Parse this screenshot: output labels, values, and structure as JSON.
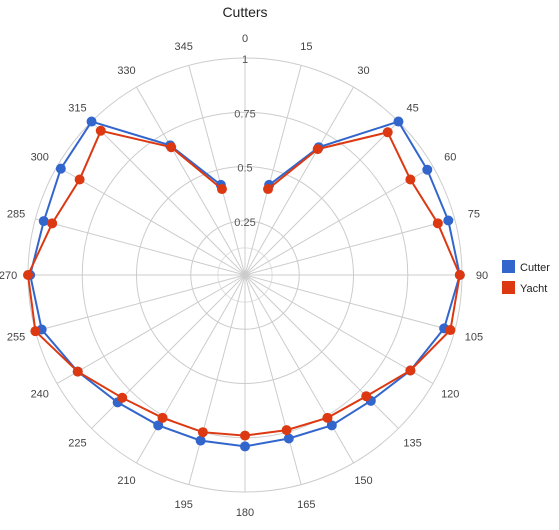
{
  "chart_data": {
    "type": "polar-line",
    "title": "Cutters",
    "angle_ticks": [
      "0",
      "15",
      "30",
      "45",
      "60",
      "75",
      "90",
      "105",
      "120",
      "135",
      "150",
      "165",
      "180",
      "195",
      "210",
      "225",
      "240",
      "255",
      "270",
      "285",
      "300",
      "315",
      "330",
      "345"
    ],
    "radial_ticks": [
      "0.25",
      "0.5",
      "0.75",
      "1"
    ],
    "radial_tick_values": [
      0.25,
      0.5,
      0.75,
      1
    ],
    "rlim": [
      0,
      1
    ],
    "grid": true,
    "legend_position": "right",
    "series": [
      {
        "name": "Cutter",
        "color": "#3366cc",
        "points": [
          {
            "angle": 15,
            "r": 0.43
          },
          {
            "angle": 30,
            "r": 0.68
          },
          {
            "angle": 45,
            "r": 1.0
          },
          {
            "angle": 60,
            "r": 0.97
          },
          {
            "angle": 75,
            "r": 0.97
          },
          {
            "angle": 90,
            "r": 0.99
          },
          {
            "angle": 105,
            "r": 0.95
          },
          {
            "angle": 120,
            "r": 0.88
          },
          {
            "angle": 135,
            "r": 0.82
          },
          {
            "angle": 150,
            "r": 0.8
          },
          {
            "angle": 165,
            "r": 0.78
          },
          {
            "angle": 180,
            "r": 0.79
          },
          {
            "angle": 195,
            "r": 0.79
          },
          {
            "angle": 210,
            "r": 0.8
          },
          {
            "angle": 225,
            "r": 0.83
          },
          {
            "angle": 240,
            "r": 0.89
          },
          {
            "angle": 255,
            "r": 0.97
          },
          {
            "angle": 270,
            "r": 0.99
          },
          {
            "angle": 285,
            "r": 0.96
          },
          {
            "angle": 300,
            "r": 0.98
          },
          {
            "angle": 315,
            "r": 1.0
          },
          {
            "angle": 330,
            "r": 0.69
          },
          {
            "angle": 345,
            "r": 0.43
          }
        ]
      },
      {
        "name": "Yacht",
        "color": "#dc3912",
        "points": [
          {
            "angle": 15,
            "r": 0.41
          },
          {
            "angle": 30,
            "r": 0.67
          },
          {
            "angle": 45,
            "r": 0.93
          },
          {
            "angle": 60,
            "r": 0.88
          },
          {
            "angle": 75,
            "r": 0.92
          },
          {
            "angle": 90,
            "r": 0.99
          },
          {
            "angle": 105,
            "r": 0.98
          },
          {
            "angle": 120,
            "r": 0.88
          },
          {
            "angle": 135,
            "r": 0.79
          },
          {
            "angle": 150,
            "r": 0.76
          },
          {
            "angle": 165,
            "r": 0.74
          },
          {
            "angle": 180,
            "r": 0.74
          },
          {
            "angle": 195,
            "r": 0.75
          },
          {
            "angle": 210,
            "r": 0.76
          },
          {
            "angle": 225,
            "r": 0.8
          },
          {
            "angle": 240,
            "r": 0.89
          },
          {
            "angle": 255,
            "r": 1.0
          },
          {
            "angle": 270,
            "r": 1.0
          },
          {
            "angle": 285,
            "r": 0.92
          },
          {
            "angle": 300,
            "r": 0.88
          },
          {
            "angle": 315,
            "r": 0.94
          },
          {
            "angle": 330,
            "r": 0.68
          },
          {
            "angle": 345,
            "r": 0.41
          }
        ]
      }
    ]
  }
}
